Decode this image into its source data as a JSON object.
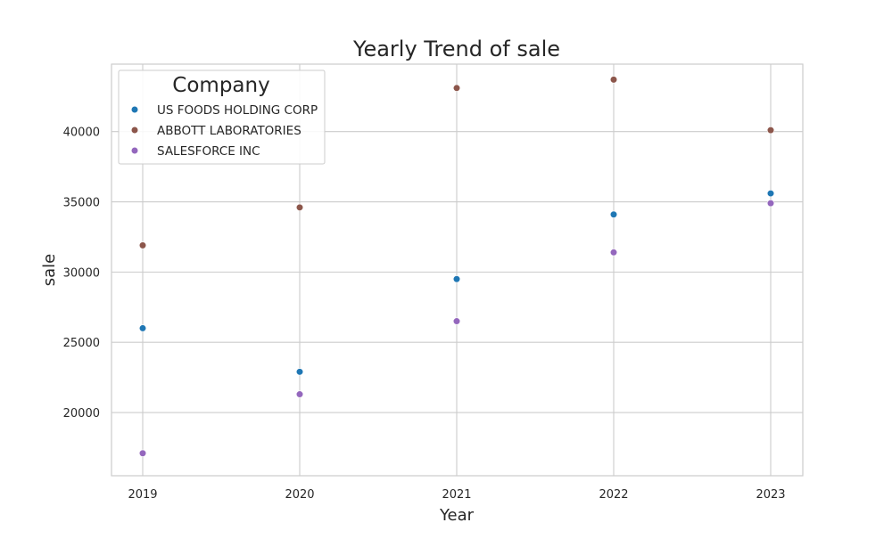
{
  "chart_data": {
    "type": "scatter",
    "title": "Yearly Trend of sale",
    "xlabel": "Year",
    "ylabel": "sale",
    "categories": [
      "2019",
      "2020",
      "2021",
      "2022",
      "2023"
    ],
    "ylim": [
      15500,
      44800
    ],
    "yticks": [
      20000,
      25000,
      30000,
      35000,
      40000
    ],
    "grid": true,
    "legend": {
      "title": "Company",
      "position": "top-left"
    },
    "series": [
      {
        "name": "US FOODS HOLDING CORP",
        "color": "#1f77b4",
        "values": [
          26000,
          22900,
          29500,
          34100,
          35600
        ]
      },
      {
        "name": "ABBOTT LABORATORIES",
        "color": "#8c564b",
        "values": [
          31900,
          34600,
          43100,
          43700,
          40100
        ]
      },
      {
        "name": "SALESFORCE INC",
        "color": "#9467bd",
        "values": [
          17100,
          21300,
          26500,
          31400,
          34900
        ]
      }
    ]
  }
}
